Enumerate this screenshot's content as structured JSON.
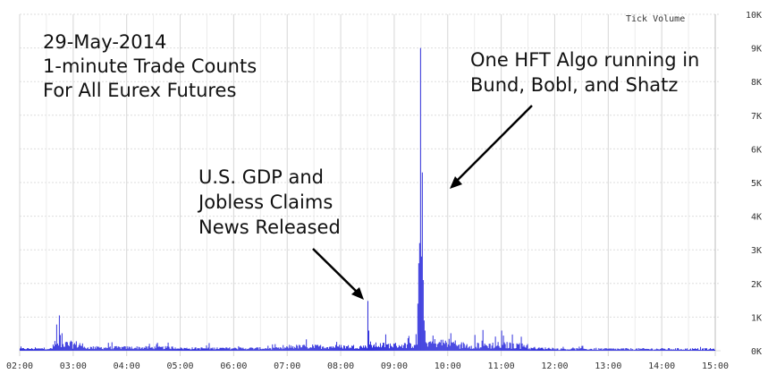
{
  "chart_data": {
    "type": "bar",
    "title_lines": [
      "29-May-2014",
      "1-minute Trade Counts",
      "For All Eurex Futures"
    ],
    "legend": "Tick Volume",
    "x_tick_labels": [
      "02:00",
      "03:00",
      "04:00",
      "05:00",
      "06:00",
      "07:00",
      "08:00",
      "09:00",
      "10:00",
      "11:00",
      "12:00",
      "13:00",
      "14:00",
      "15:00"
    ],
    "x_range_minutes": [
      120,
      900
    ],
    "y_tick_labels": [
      "0K",
      "1K",
      "2K",
      "3K",
      "4K",
      "5K",
      "6K",
      "7K",
      "8K",
      "9K",
      "10K"
    ],
    "ylim": [
      0,
      10000
    ],
    "y_axis_position": "right",
    "grid": true,
    "bar_color": "#3333dd",
    "annotations": [
      {
        "lines": [
          "U.S. GDP and",
          "Jobless Claims",
          "News Released"
        ],
        "points_to_minute": 510,
        "points_to_value": 1500
      },
      {
        "lines": [
          "One HFT Algo running in",
          "Bund, Bobl, and Shatz"
        ],
        "points_to_minute": 572,
        "points_to_value": 5000
      }
    ],
    "segments": [
      {
        "from": 120,
        "to": 157,
        "base": 60,
        "noise": 40
      },
      {
        "from": 157,
        "to": 190,
        "base": 180,
        "noise": 200
      },
      {
        "from": 190,
        "to": 300,
        "base": 90,
        "noise": 80
      },
      {
        "from": 300,
        "to": 420,
        "base": 70,
        "noise": 60
      },
      {
        "from": 420,
        "to": 508,
        "base": 120,
        "noise": 110
      },
      {
        "from": 508,
        "to": 565,
        "base": 160,
        "noise": 150
      },
      {
        "from": 565,
        "to": 610,
        "base": 230,
        "noise": 230
      },
      {
        "from": 610,
        "to": 690,
        "base": 160,
        "noise": 180
      },
      {
        "from": 690,
        "to": 720,
        "base": 70,
        "noise": 60
      },
      {
        "from": 720,
        "to": 900,
        "base": 50,
        "noise": 50
      }
    ],
    "spikes": [
      {
        "minute": 161,
        "value": 780
      },
      {
        "minute": 164,
        "value": 1050
      },
      {
        "minute": 167,
        "value": 520
      },
      {
        "minute": 510,
        "value": 1480
      },
      {
        "minute": 511,
        "value": 600
      },
      {
        "minute": 566,
        "value": 1400
      },
      {
        "minute": 567,
        "value": 2600
      },
      {
        "minute": 568,
        "value": 3200
      },
      {
        "minute": 569,
        "value": 9000
      },
      {
        "minute": 570,
        "value": 2800
      },
      {
        "minute": 571,
        "value": 5300
      },
      {
        "minute": 572,
        "value": 2100
      },
      {
        "minute": 573,
        "value": 900
      },
      {
        "minute": 574,
        "value": 600
      },
      {
        "minute": 583,
        "value": 450
      },
      {
        "minute": 603,
        "value": 520
      },
      {
        "minute": 660,
        "value": 600
      },
      {
        "minute": 662,
        "value": 450
      }
    ]
  }
}
